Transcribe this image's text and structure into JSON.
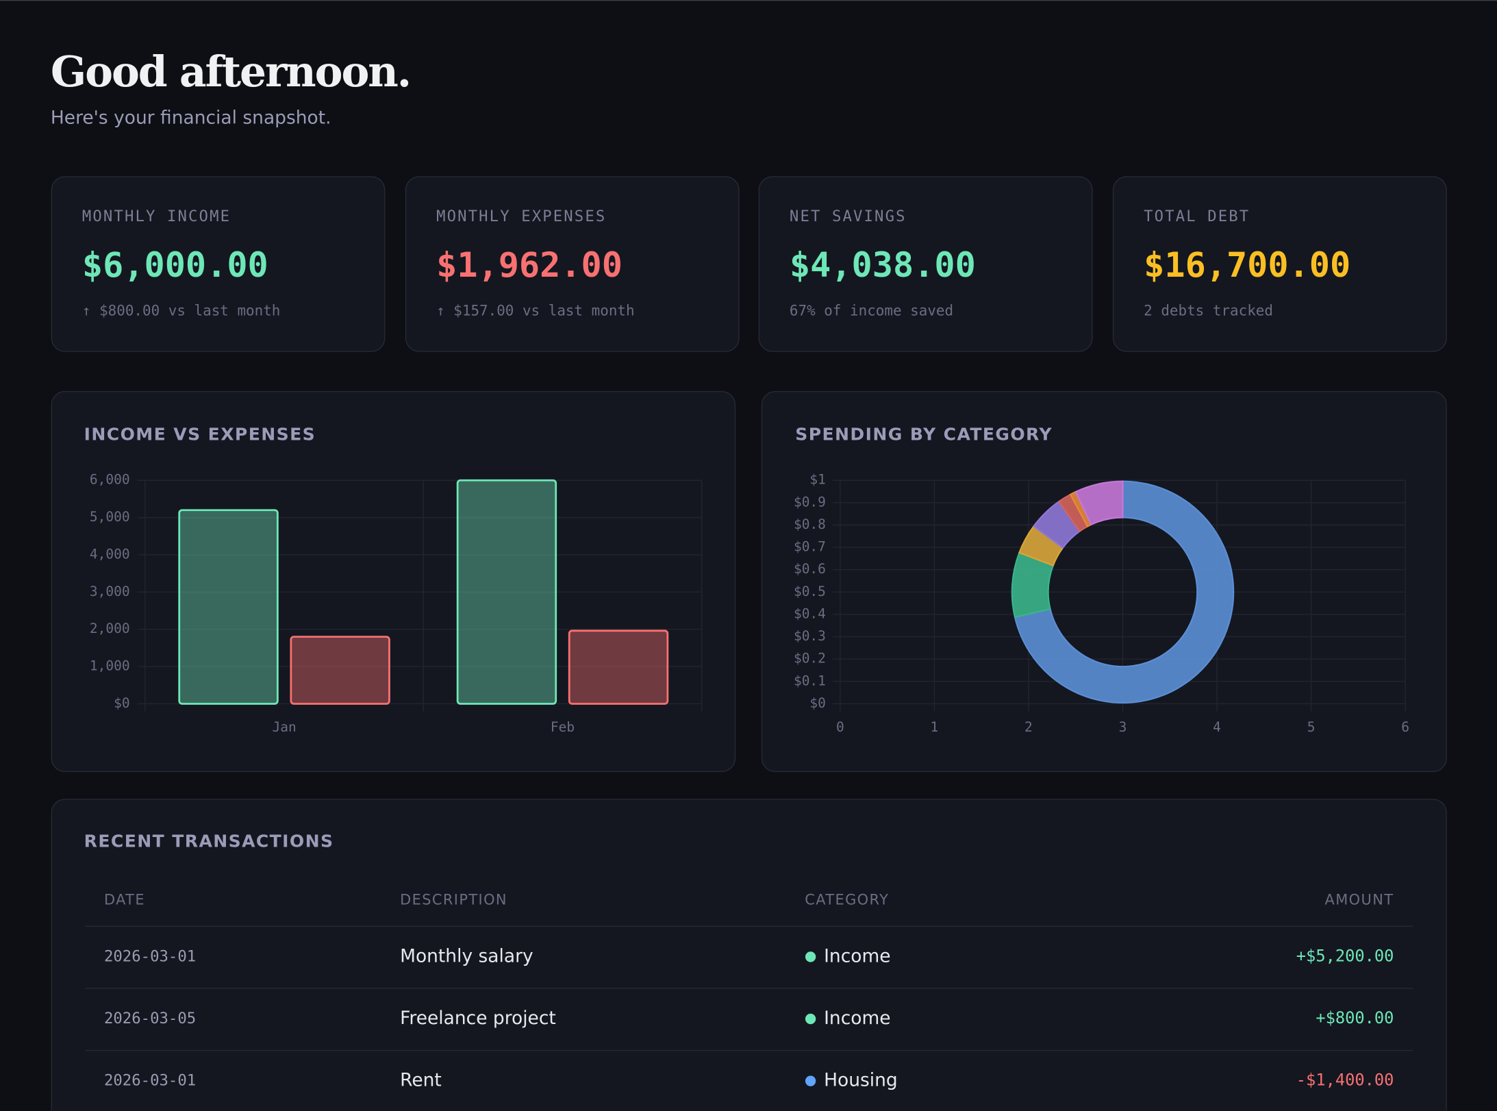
{
  "header": {
    "title": "Good afternoon.",
    "subtitle": "Here's your financial snapshot."
  },
  "cards": [
    {
      "label": "MONTHLY INCOME",
      "value": "$6,000.00",
      "note": "↑ $800.00 vs last month",
      "color": "#6ee7b7"
    },
    {
      "label": "MONTHLY EXPENSES",
      "value": "$1,962.00",
      "note": "↑ $157.00 vs last month",
      "color": "#f87171"
    },
    {
      "label": "NET SAVINGS",
      "value": "$4,038.00",
      "note": "67% of income saved",
      "color": "#6ee7b7"
    },
    {
      "label": "TOTAL DEBT",
      "value": "$16,700.00",
      "note": "2 debts tracked",
      "color": "#fbbf24"
    }
  ],
  "chart_data": [
    {
      "type": "bar",
      "title": "INCOME VS EXPENSES",
      "categories": [
        "Jan",
        "Feb"
      ],
      "series": [
        {
          "color": "#6ee7b7",
          "values": [
            5200,
            6000
          ]
        },
        {
          "color": "#f87171",
          "values": [
            1800,
            1962
          ]
        }
      ],
      "ylim": [
        0,
        6000
      ],
      "yticks": [
        {
          "value": 0,
          "label": "$0"
        },
        {
          "value": 1000,
          "label": "1,000"
        },
        {
          "value": 2000,
          "label": "2,000"
        },
        {
          "value": 3000,
          "label": "3,000"
        },
        {
          "value": 4000,
          "label": "4,000"
        },
        {
          "value": 5000,
          "label": "5,000"
        },
        {
          "value": 6000,
          "label": "6,000"
        }
      ],
      "grid": true
    },
    {
      "type": "pie",
      "title": "SPENDING BY CATEGORY",
      "values": [
        1400,
        185,
        85,
        100,
        38,
        17,
        137
      ],
      "colors": [
        "#5b8fd6",
        "#3bb58a",
        "#d9a63a",
        "#8f78d8",
        "#d4645c",
        "#e8893a",
        "#c678d8"
      ],
      "xlim": [
        0,
        6
      ],
      "xticks": [
        0,
        1,
        2,
        3,
        4,
        5,
        6
      ],
      "ylim": [
        0,
        1
      ],
      "yticks": [
        {
          "value": 0,
          "label": "$0"
        },
        {
          "value": 0.1,
          "label": "$0.1"
        },
        {
          "value": 0.2,
          "label": "$0.2"
        },
        {
          "value": 0.3,
          "label": "$0.3"
        },
        {
          "value": 0.4,
          "label": "$0.4"
        },
        {
          "value": 0.5,
          "label": "$0.5"
        },
        {
          "value": 0.6,
          "label": "$0.6"
        },
        {
          "value": 0.7,
          "label": "$0.7"
        },
        {
          "value": 0.8,
          "label": "$0.8"
        },
        {
          "value": 0.9,
          "label": "$0.9"
        },
        {
          "value": 1,
          "label": "$1"
        }
      ],
      "grid": true
    }
  ],
  "transactions": {
    "title": "RECENT TRANSACTIONS",
    "columns": [
      "DATE",
      "DESCRIPTION",
      "CATEGORY",
      "AMOUNT"
    ],
    "rows": [
      [
        "2026-03-01",
        "Monthly salary",
        "Income",
        "+$5,200.00"
      ],
      [
        "2026-03-05",
        "Freelance project",
        "Income",
        "+$800.00"
      ],
      [
        "2026-03-01",
        "Rent",
        "Housing",
        "-$1,400.00"
      ]
    ],
    "dot_colors": [
      "#6ee7b7",
      "#6ee7b7",
      "#60a5fa"
    ]
  }
}
